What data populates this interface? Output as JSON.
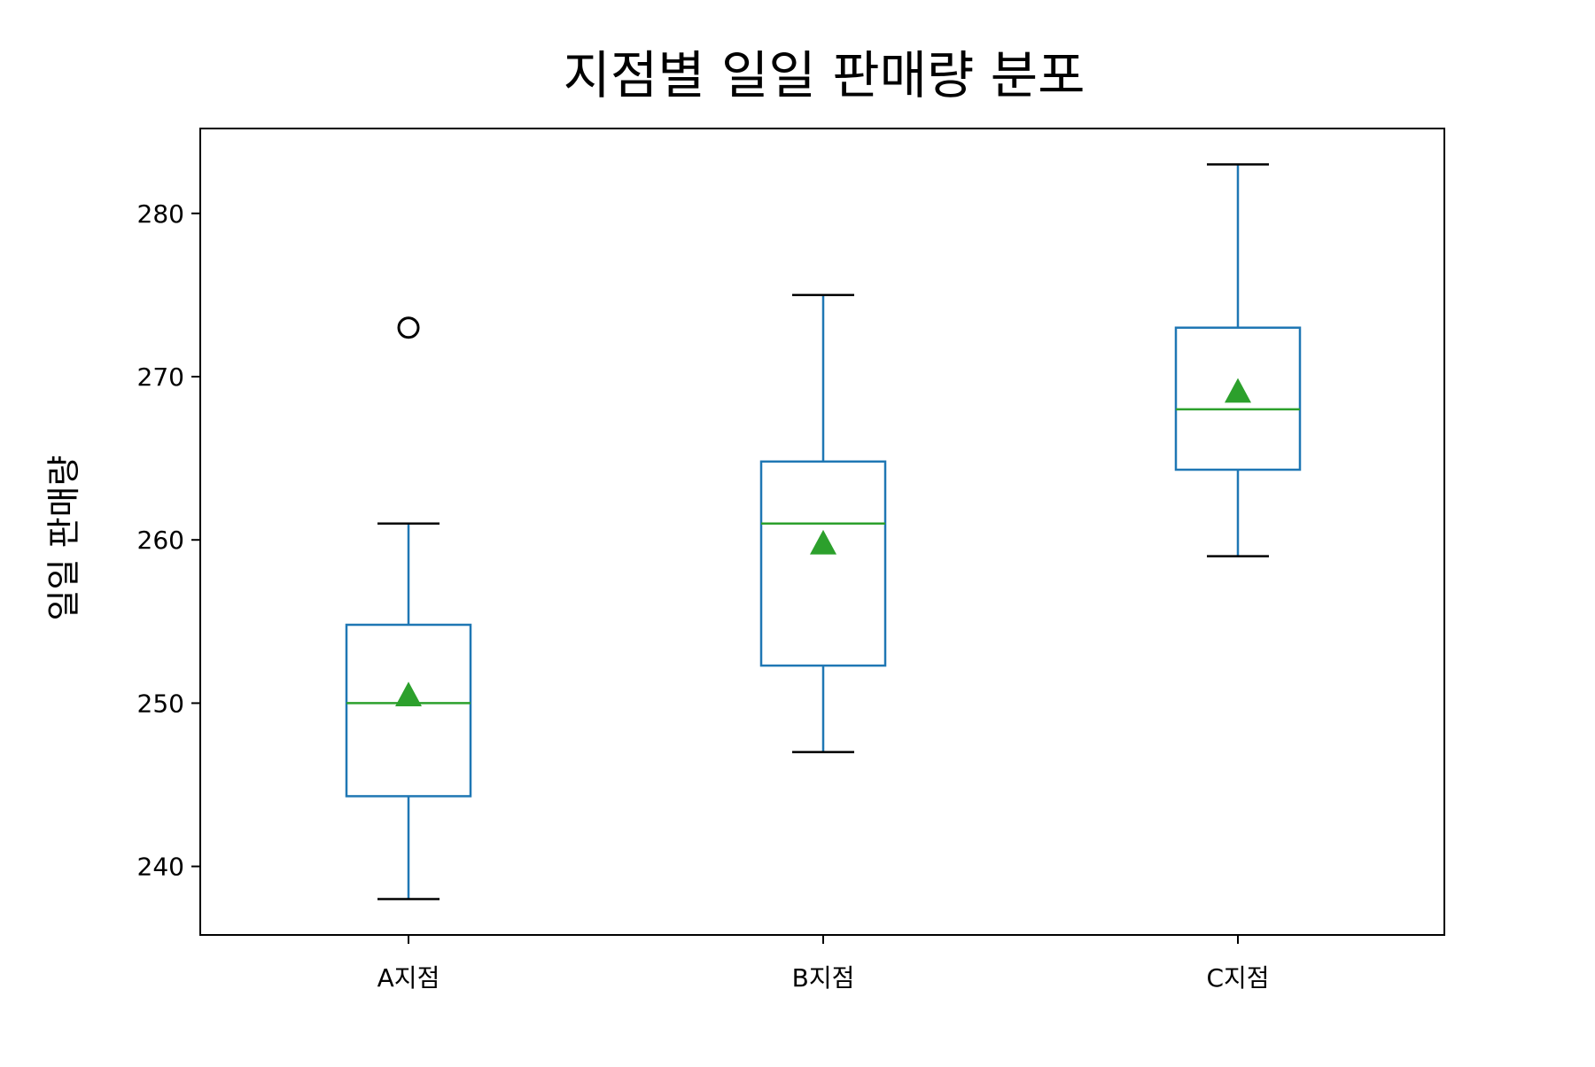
{
  "chart_data": {
    "type": "box",
    "title": "지점별 일일 판매량 분포",
    "xlabel": "",
    "ylabel": "일일 판매량",
    "categories": [
      "A지점",
      "B지점",
      "C지점"
    ],
    "ylim": [
      235.8,
      285.2
    ],
    "yticks": [
      240,
      250,
      260,
      270,
      280
    ],
    "grid": false,
    "legend": "none",
    "series": [
      {
        "category": "A지점",
        "whisker_low": 238,
        "q1": 244.3,
        "median": 250,
        "q3": 254.8,
        "whisker_high": 261,
        "mean": 250.5,
        "outliers": [
          273
        ]
      },
      {
        "category": "B지점",
        "whisker_low": 247,
        "q1": 252.3,
        "median": 261,
        "q3": 264.8,
        "whisker_high": 275,
        "mean": 259.8,
        "outliers": []
      },
      {
        "category": "C지점",
        "whisker_low": 259,
        "q1": 264.3,
        "median": 268,
        "q3": 273,
        "whisker_high": 283,
        "mean": 269.1,
        "outliers": []
      }
    ],
    "colors": {
      "box": "#1f77b4",
      "whisker": "#1f77b4",
      "cap": "#000000",
      "median": "#2ca02c",
      "mean_marker": "#2ca02c",
      "outlier": "#000000",
      "axes": "#000000"
    }
  }
}
